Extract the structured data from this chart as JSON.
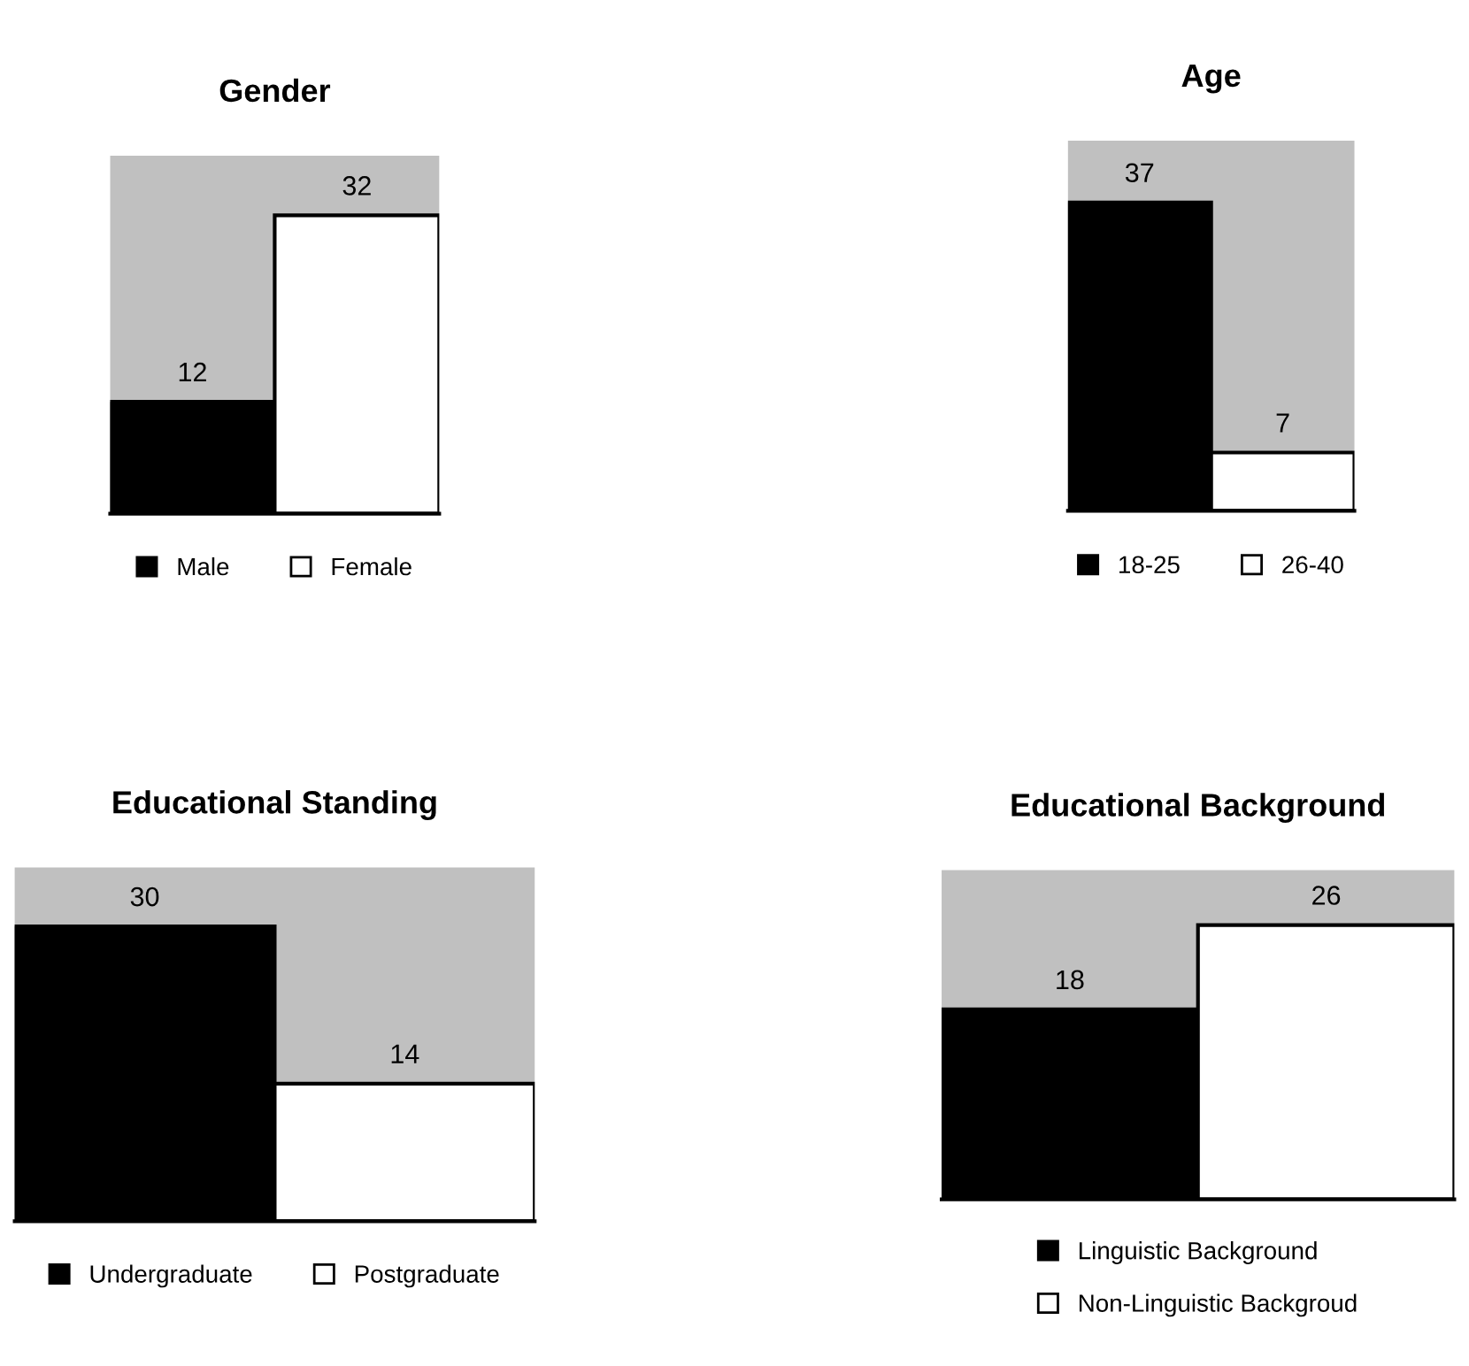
{
  "chart_data": [
    {
      "type": "bar",
      "title": "Gender",
      "categories": [
        null
      ],
      "data_labels": true,
      "legend": "bottom",
      "series": [
        {
          "name": "Male",
          "color": "#000000",
          "values": [
            12
          ]
        },
        {
          "name": "Female",
          "color": "#ffffff",
          "values": [
            32
          ]
        }
      ]
    },
    {
      "type": "bar",
      "title": "Age",
      "categories": [
        null
      ],
      "data_labels": true,
      "legend": "bottom",
      "series": [
        {
          "name": "18-25",
          "color": "#000000",
          "values": [
            37
          ]
        },
        {
          "name": "26-40",
          "color": "#ffffff",
          "values": [
            7
          ]
        }
      ]
    },
    {
      "type": "bar",
      "title": "Educational Standing",
      "categories": [
        null
      ],
      "data_labels": true,
      "legend": "bottom",
      "series": [
        {
          "name": "Undergraduate",
          "color": "#000000",
          "values": [
            30
          ]
        },
        {
          "name": "Postgraduate",
          "color": "#ffffff",
          "values": [
            14
          ]
        }
      ]
    },
    {
      "type": "bar",
      "title": "Educational Background",
      "categories": [
        null
      ],
      "data_labels": true,
      "legend": "bottom",
      "series": [
        {
          "name": "Linguistic Background",
          "color": "#000000",
          "values": [
            18
          ]
        },
        {
          "name": "Non-Linguistic Backgroud",
          "color": "#ffffff",
          "values": [
            26
          ]
        }
      ]
    }
  ]
}
